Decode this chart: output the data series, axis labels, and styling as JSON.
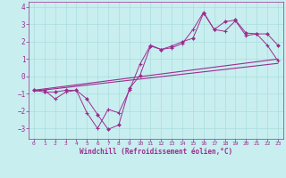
{
  "x_values": [
    0,
    1,
    2,
    3,
    4,
    5,
    6,
    7,
    8,
    9,
    10,
    11,
    12,
    13,
    14,
    15,
    16,
    17,
    18,
    19,
    20,
    21,
    22,
    23
  ],
  "line1_y": [
    -0.8,
    -0.8,
    -1.3,
    -0.9,
    -0.8,
    -2.1,
    -3.0,
    -1.9,
    -2.1,
    -0.8,
    0.7,
    1.8,
    1.55,
    1.65,
    1.9,
    2.7,
    3.7,
    2.7,
    2.6,
    3.2,
    2.35,
    2.45,
    1.8,
    0.9
  ],
  "line2_y": [
    -0.8,
    -0.9,
    -0.9,
    -0.8,
    -0.8,
    -1.3,
    -2.2,
    -3.05,
    -2.8,
    -0.7,
    0.05,
    1.75,
    1.55,
    1.75,
    2.0,
    2.2,
    3.65,
    2.7,
    3.15,
    3.25,
    2.5,
    2.45,
    2.45,
    1.8
  ],
  "line3_x": [
    0,
    23
  ],
  "line3_y": [
    -0.8,
    1.0
  ],
  "line4_x": [
    0,
    23
  ],
  "line4_y": [
    -0.85,
    0.75
  ],
  "color": "#9B2D8E",
  "bg_color": "#C8EEF0",
  "grid_color": "#AADDDD",
  "ylim": [
    -3.6,
    4.3
  ],
  "xlim": [
    -0.5,
    23.5
  ],
  "xlabel": "Windchill (Refroidissement éolien,°C)",
  "yticks": [
    -3,
    -2,
    -1,
    0,
    1,
    2,
    3,
    4
  ],
  "xticks": [
    0,
    1,
    2,
    3,
    4,
    5,
    6,
    7,
    8,
    9,
    10,
    11,
    12,
    13,
    14,
    15,
    16,
    17,
    18,
    19,
    20,
    21,
    22,
    23
  ]
}
